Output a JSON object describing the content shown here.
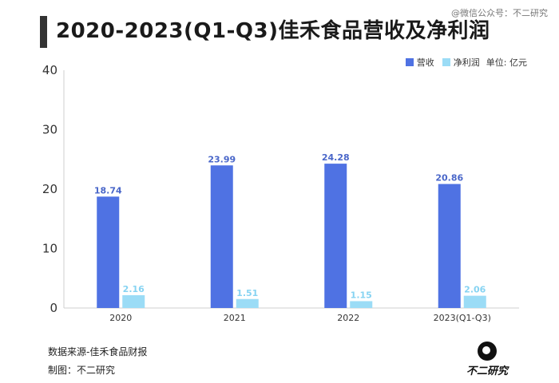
{
  "watermark": "@微信公众号：不二研究",
  "title": "2020-2023(Q1-Q3)佳禾食品营收及净利润",
  "legend": {
    "unit": "单位: 亿元"
  },
  "colors": {
    "revenue": "#4f72e3",
    "net_profit": "#9bdcf6",
    "revenue_label": "#4a67c9",
    "profit_label": "#86d3f2"
  },
  "chart_data": {
    "type": "bar",
    "categories": [
      "2020",
      "2021",
      "2022",
      "2023(Q1-Q3)"
    ],
    "series": [
      {
        "name": "营收",
        "values": [
          18.74,
          23.99,
          24.28,
          20.86
        ]
      },
      {
        "name": "净利润",
        "values": [
          2.16,
          1.51,
          1.15,
          2.06
        ]
      }
    ],
    "ylim": [
      0,
      40
    ],
    "yticks": [
      0,
      10,
      20,
      30,
      40
    ],
    "unit": "单位: 亿元",
    "legend_position": "top-right",
    "grid": false
  },
  "footer": {
    "source": "数据来源-佳禾食品财报",
    "maker": "制图：不二研究",
    "logo_text": "不二研究"
  }
}
